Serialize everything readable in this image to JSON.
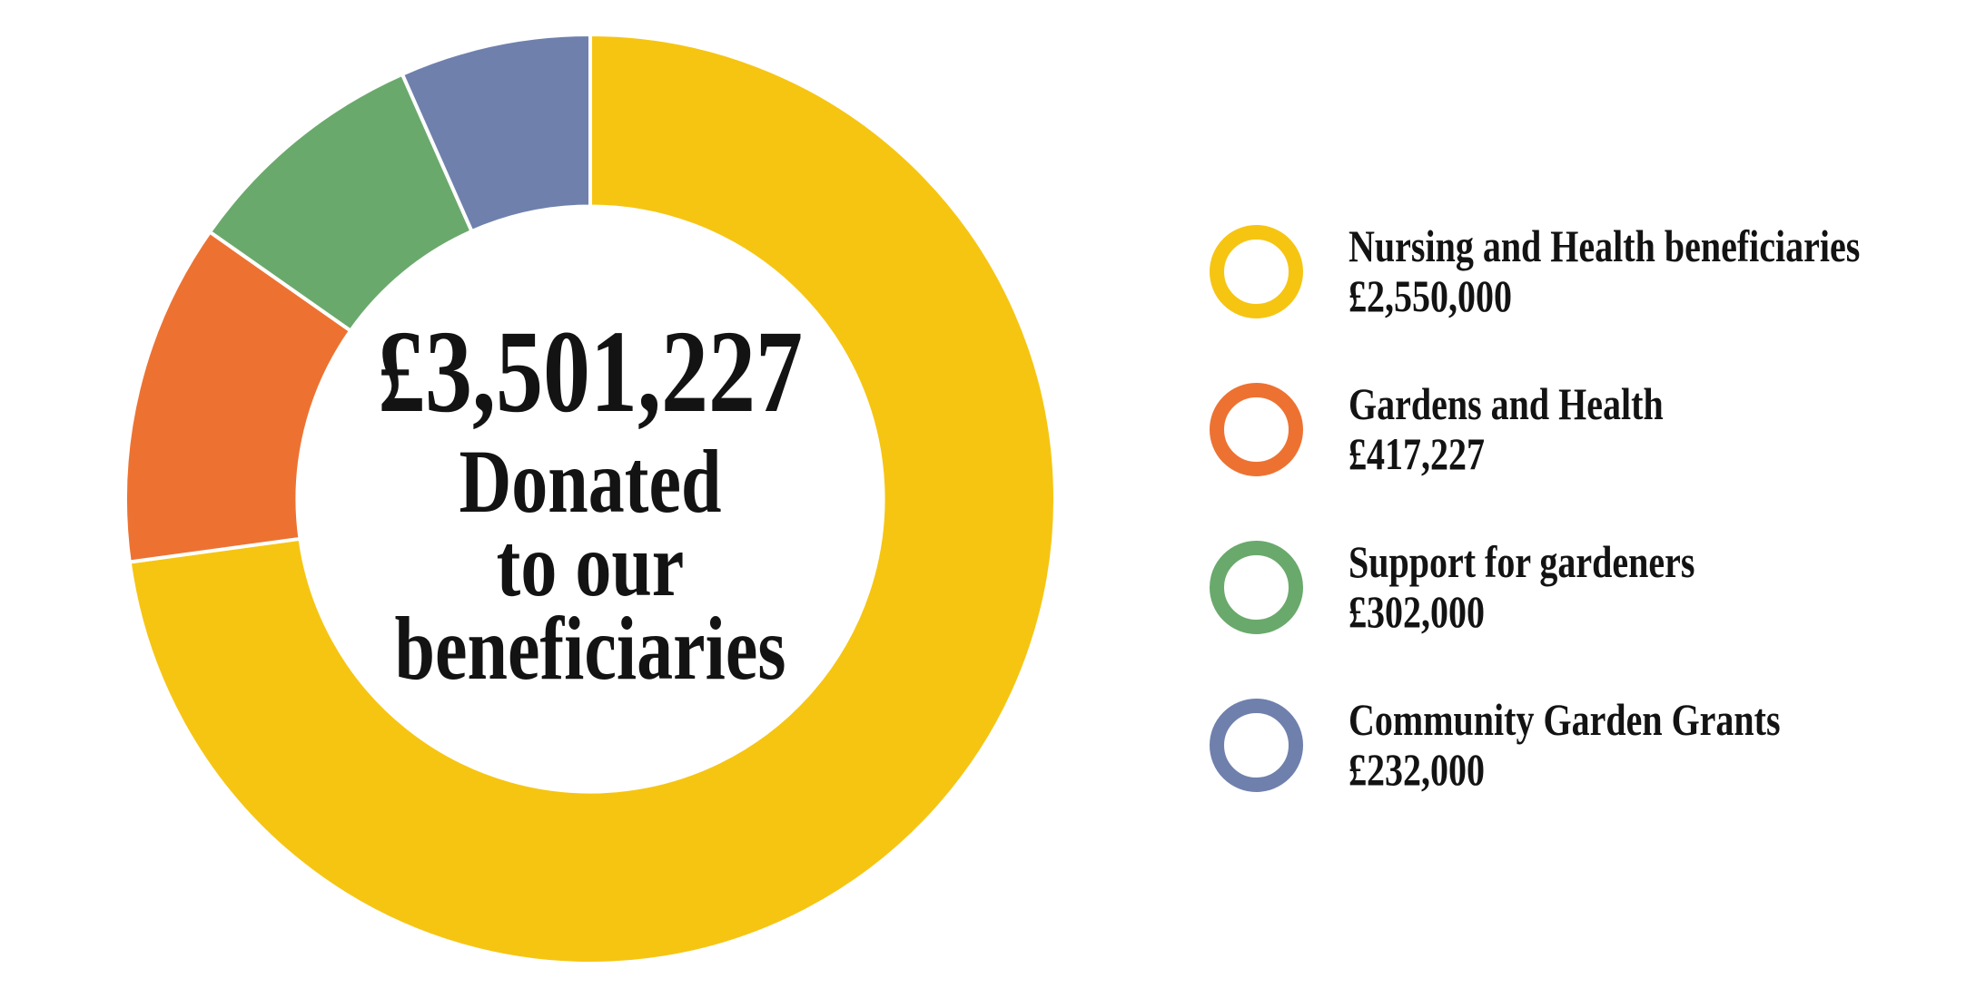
{
  "page": {
    "background_color": "#FFFFFF",
    "text_color": "#131313"
  },
  "chart_data": {
    "type": "pie",
    "subtype": "donut",
    "title": "£3,501,227 Donated to our beneficiaries",
    "total_value": 3501227,
    "currency_symbol": "£",
    "center_label": {
      "amount": "£3,501,227",
      "line2": "Donated",
      "line3": "to our",
      "line4": "beneficiaries"
    },
    "start_angle_deg": 0,
    "direction": "clockwise",
    "donut_hole_ratio": 0.63,
    "separator_color": "#FFFFFF",
    "legend_position": "right",
    "segments": [
      {
        "label": "Nursing and Health beneficiaries",
        "value": 2550000,
        "display_value": "£2,550,000",
        "color": "#F6C512"
      },
      {
        "label": "Gardens and Health",
        "value": 417227,
        "display_value": "£417,227",
        "color": "#ED7232"
      },
      {
        "label": "Support for gardeners",
        "value": 302000,
        "display_value": "£302,000",
        "color": "#6AA96C"
      },
      {
        "label": "Community Garden Grants",
        "value": 232000,
        "display_value": "£232,000",
        "color": "#6F80AD"
      }
    ]
  }
}
